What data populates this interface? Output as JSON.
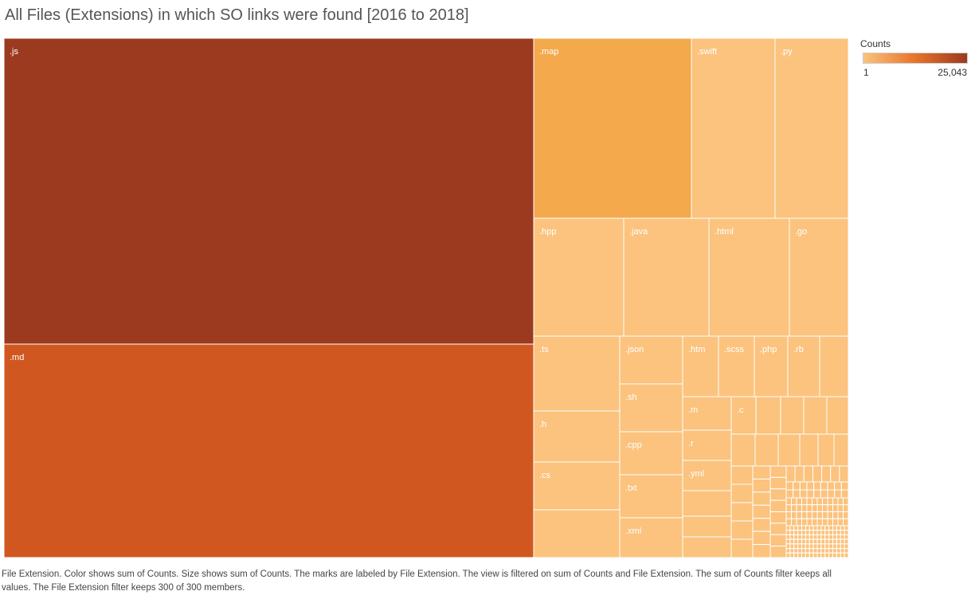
{
  "title": "All Files (Extensions) in which SO links were found [2016 to 2018]",
  "legend": {
    "title": "Counts",
    "min_label": "1",
    "max_label": "25,043",
    "color_low": "#fac27c",
    "color_high": "#9c3a20"
  },
  "caption": "File Extension.  Color shows sum of Counts.  Size shows sum of Counts.  The marks are labeled by File Extension. The view is filtered on sum of Counts and File Extension. The sum of Counts filter keeps all values. The File Extension filter keeps 300 of 300 members.",
  "chart_data": {
    "type": "treemap",
    "title": "All Files (Extensions) in which SO links were found [2016 to 2018]",
    "size_measure": "sum of Counts",
    "color_measure": "sum of Counts",
    "color_range": [
      1,
      25043
    ],
    "tile_label_color": "#ffffff",
    "unlabeled_tile_color": "#fbc37e",
    "items": [
      {
        "label": ".js",
        "value": 25043,
        "color": "#9c3a20"
      },
      {
        "label": ".md",
        "value": 18330,
        "color": "#d05820"
      },
      {
        "label": ".map",
        "value": 2950,
        "color": "#f4a94d"
      },
      {
        "label": ".swift",
        "value": 1550,
        "color": "#fbc37e"
      },
      {
        "label": ".py",
        "value": 1340,
        "color": "#fbc37e"
      },
      {
        "label": ".hpp",
        "value": 1200,
        "color": "#fbc37e"
      },
      {
        "label": ".java",
        "value": 1150,
        "color": "#fbc37e"
      },
      {
        "label": ".html",
        "value": 1080,
        "color": "#fbc37e"
      },
      {
        "label": ".go",
        "value": 780,
        "color": "#fbc37e"
      },
      {
        "label": ".ts",
        "value": 720,
        "color": "#fbc37e"
      },
      {
        "label": ".h",
        "value": 490,
        "color": "#fbc37e"
      },
      {
        "label": ".cs",
        "value": 460,
        "color": "#fbc37e"
      },
      {
        "label": ".json",
        "value": 460,
        "color": "#fbc37e"
      },
      {
        "label": ".sh",
        "value": 360,
        "color": "#fbc37e"
      },
      {
        "label": ".cpp",
        "value": 340,
        "color": "#fbc37e"
      },
      {
        "label": ".txt",
        "value": 410,
        "color": "#fbc37e"
      },
      {
        "label": ".xml",
        "value": 390,
        "color": "#fbc37e"
      },
      {
        "label": ".htm",
        "value": 240,
        "color": "#fbc37e"
      },
      {
        "label": ".scss",
        "value": 230,
        "color": "#fbc37e"
      },
      {
        "label": ".php",
        "value": 220,
        "color": "#fbc37e"
      },
      {
        "label": ".rb",
        "value": 210,
        "color": "#fbc37e"
      },
      {
        "label": ".m",
        "value": 140,
        "color": "#fbc37e"
      },
      {
        "label": ".c",
        "value": 80,
        "color": "#fbc37e"
      },
      {
        "label": ".r",
        "value": 130,
        "color": "#fbc37e"
      },
      {
        "label": ".yml",
        "value": 130,
        "color": "#fbc37e"
      }
    ]
  }
}
